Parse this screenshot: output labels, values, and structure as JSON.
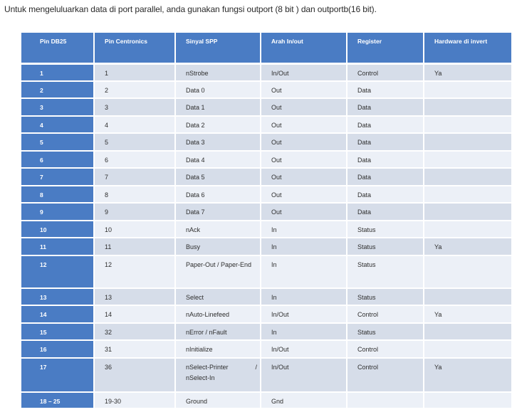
{
  "intro": "Untuk mengeluluarkan data di port parallel, anda gunakan fungsi outport (8 bit ) dan outportb(16 bit).",
  "table": {
    "headers": [
      "Pin DB25",
      "Pin Centronics",
      "Sinyal SPP",
      "Arah In/out",
      "Register",
      "Hardware di invert"
    ],
    "rows": [
      {
        "pin": "1",
        "centronics": "1",
        "signal": "nStrobe",
        "direction": "In/Out",
        "register": "Control",
        "inverted": "Ya"
      },
      {
        "pin": "2",
        "centronics": "2",
        "signal": "Data 0",
        "direction": "Out",
        "register": "Data",
        "inverted": ""
      },
      {
        "pin": "3",
        "centronics": "3",
        "signal": "Data 1",
        "direction": "Out",
        "register": "Data",
        "inverted": ""
      },
      {
        "pin": "4",
        "centronics": "4",
        "signal": "Data 2",
        "direction": "Out",
        "register": "Data",
        "inverted": ""
      },
      {
        "pin": "5",
        "centronics": "5",
        "signal": "Data 3",
        "direction": "Out",
        "register": "Data",
        "inverted": ""
      },
      {
        "pin": "6",
        "centronics": "6",
        "signal": "Data 4",
        "direction": "Out",
        "register": "Data",
        "inverted": ""
      },
      {
        "pin": "7",
        "centronics": "7",
        "signal": "Data 5",
        "direction": "Out",
        "register": "Data",
        "inverted": ""
      },
      {
        "pin": "8",
        "centronics": "8",
        "signal": "Data 6",
        "direction": "Out",
        "register": "Data",
        "inverted": ""
      },
      {
        "pin": "9",
        "centronics": "9",
        "signal": "Data 7",
        "direction": "Out",
        "register": "Data",
        "inverted": ""
      },
      {
        "pin": "10",
        "centronics": "10",
        "signal": "nAck",
        "direction": "In",
        "register": "Status",
        "inverted": ""
      },
      {
        "pin": "11",
        "centronics": "11",
        "signal": "Busy",
        "direction": "In",
        "register": "Status",
        "inverted": "Ya"
      },
      {
        "pin": "12",
        "centronics": "12",
        "signal": "Paper-Out / Paper-End",
        "direction": "In",
        "register": "Status",
        "inverted": ""
      },
      {
        "pin": "13",
        "centronics": "13",
        "signal": "Select",
        "direction": "In",
        "register": "Status",
        "inverted": ""
      },
      {
        "pin": "14",
        "centronics": "14",
        "signal": "nAuto-Linefeed",
        "direction": "In/Out",
        "register": "Control",
        "inverted": "Ya"
      },
      {
        "pin": "15",
        "centronics": "32",
        "signal": "nError / nFault",
        "direction": "In",
        "register": "Status",
        "inverted": ""
      },
      {
        "pin": "16",
        "centronics": "31",
        "signal": "nInitialize",
        "direction": "In/Out",
        "register": "Control",
        "inverted": ""
      },
      {
        "pin": "17",
        "centronics": "36",
        "signal": "nSelect-Printer / nSelect-In",
        "direction": "In/Out",
        "register": "Control",
        "inverted": "Ya"
      },
      {
        "pin": "18 – 25",
        "centronics": "19-30",
        "signal": "Ground",
        "direction": "Gnd",
        "register": "",
        "inverted": ""
      }
    ]
  },
  "colors": {
    "header_blue": "#4a7cc4",
    "row_dark": "#d6dde9",
    "row_light": "#ecf0f7"
  }
}
